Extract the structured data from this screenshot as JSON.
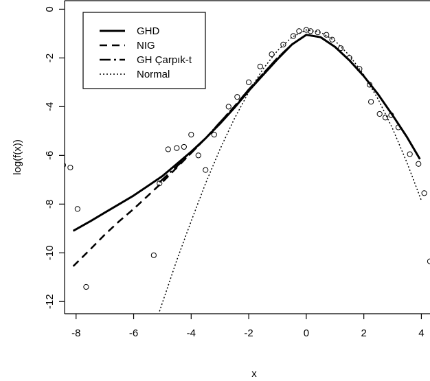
{
  "chart_data": {
    "type": "line",
    "title": "",
    "xlabel": "x",
    "ylabel": "log(f(x))",
    "xlim": [
      -8.4,
      4.3
    ],
    "ylim": [
      -12.5,
      0.35
    ],
    "xticks": [
      -8,
      -6,
      -4,
      -2,
      0,
      2,
      4
    ],
    "yticks": [
      0,
      -2,
      -4,
      -6,
      -8,
      -10,
      -12
    ],
    "grid": false,
    "legend_position": "top-left",
    "series": [
      {
        "name": "GHD",
        "style": "solid-thick",
        "points": [
          [
            -8.1,
            -9.1
          ],
          [
            -7.5,
            -8.7
          ],
          [
            -7.0,
            -8.35
          ],
          [
            -6.5,
            -8.0
          ],
          [
            -6.0,
            -7.65
          ],
          [
            -5.5,
            -7.25
          ],
          [
            -5.0,
            -6.85
          ],
          [
            -4.5,
            -6.35
          ],
          [
            -4.0,
            -5.85
          ],
          [
            -3.5,
            -5.3
          ],
          [
            -3.0,
            -4.7
          ],
          [
            -2.5,
            -4.05
          ],
          [
            -2.0,
            -3.35
          ],
          [
            -1.5,
            -2.7
          ],
          [
            -1.0,
            -2.05
          ],
          [
            -0.5,
            -1.45
          ],
          [
            0.0,
            -1.05
          ],
          [
            0.5,
            -1.15
          ],
          [
            1.0,
            -1.55
          ],
          [
            1.5,
            -2.1
          ],
          [
            2.0,
            -2.75
          ],
          [
            2.5,
            -3.5
          ],
          [
            3.0,
            -4.35
          ],
          [
            3.5,
            -5.25
          ],
          [
            3.95,
            -6.15
          ]
        ]
      },
      {
        "name": "NIG",
        "style": "dashed",
        "points": [
          [
            -8.1,
            -10.55
          ],
          [
            -7.5,
            -9.85
          ],
          [
            -7.0,
            -9.25
          ],
          [
            -6.5,
            -8.7
          ],
          [
            -6.0,
            -8.2
          ],
          [
            -5.5,
            -7.65
          ],
          [
            -5.0,
            -7.1
          ],
          [
            -4.5,
            -6.5
          ],
          [
            -4.0,
            -5.9
          ],
          [
            -3.5,
            -5.3
          ],
          [
            -3.0,
            -4.65
          ],
          [
            -2.5,
            -4.0
          ],
          [
            -2.0,
            -3.3
          ],
          [
            -1.5,
            -2.65
          ],
          [
            -1.0,
            -2.0
          ],
          [
            -0.5,
            -1.45
          ],
          [
            0.0,
            -1.05
          ],
          [
            0.5,
            -1.15
          ],
          [
            1.0,
            -1.55
          ],
          [
            1.5,
            -2.1
          ],
          [
            2.0,
            -2.75
          ],
          [
            2.5,
            -3.5
          ],
          [
            3.0,
            -4.35
          ],
          [
            3.5,
            -5.25
          ],
          [
            3.95,
            -6.15
          ]
        ]
      },
      {
        "name": "GH Çarpık-t",
        "style": "longdash",
        "points": [
          [
            -5.1,
            -7.1
          ],
          [
            -4.5,
            -6.45
          ],
          [
            -4.0,
            -5.9
          ],
          [
            -3.5,
            -5.3
          ],
          [
            -3.0,
            -4.65
          ],
          [
            -2.5,
            -4.0
          ],
          [
            -2.0,
            -3.3
          ],
          [
            -1.5,
            -2.65
          ],
          [
            -1.0,
            -2.0
          ],
          [
            -0.5,
            -1.45
          ],
          [
            0.0,
            -1.05
          ],
          [
            0.5,
            -1.15
          ],
          [
            1.0,
            -1.55
          ],
          [
            1.5,
            -2.1
          ],
          [
            2.0,
            -2.75
          ],
          [
            2.5,
            -3.5
          ],
          [
            3.0,
            -4.35
          ],
          [
            3.5,
            -5.25
          ],
          [
            3.95,
            -6.15
          ]
        ]
      },
      {
        "name": "Normal",
        "style": "dotted",
        "points": [
          [
            -5.1,
            -12.4
          ],
          [
            -4.5,
            -10.3
          ],
          [
            -4.0,
            -8.7
          ],
          [
            -3.5,
            -7.15
          ],
          [
            -3.0,
            -5.75
          ],
          [
            -2.5,
            -4.5
          ],
          [
            -2.0,
            -3.4
          ],
          [
            -1.5,
            -2.45
          ],
          [
            -1.0,
            -1.7
          ],
          [
            -0.5,
            -1.15
          ],
          [
            0.0,
            -0.85
          ],
          [
            0.5,
            -0.95
          ],
          [
            1.0,
            -1.3
          ],
          [
            1.5,
            -1.9
          ],
          [
            2.0,
            -2.7
          ],
          [
            2.5,
            -3.7
          ],
          [
            3.0,
            -4.9
          ],
          [
            3.5,
            -6.3
          ],
          [
            4.0,
            -7.85
          ]
        ]
      }
    ],
    "observations": [
      [
        -8.45,
        -6.4
      ],
      [
        -8.2,
        -6.5
      ],
      [
        -7.95,
        -8.2
      ],
      [
        -7.65,
        -11.4
      ],
      [
        -5.3,
        -10.1
      ],
      [
        -5.1,
        -7.15
      ],
      [
        -4.8,
        -5.75
      ],
      [
        -4.5,
        -5.7
      ],
      [
        -4.25,
        -5.65
      ],
      [
        -4.0,
        -5.15
      ],
      [
        -3.75,
        -6.0
      ],
      [
        -3.5,
        -6.6
      ],
      [
        -3.2,
        -5.15
      ],
      [
        -2.7,
        -4.0
      ],
      [
        -2.4,
        -3.6
      ],
      [
        -2.0,
        -3.0
      ],
      [
        -1.6,
        -2.35
      ],
      [
        -1.2,
        -1.85
      ],
      [
        -0.8,
        -1.45
      ],
      [
        -0.45,
        -1.1
      ],
      [
        -0.25,
        -0.9
      ],
      [
        0.0,
        -0.85
      ],
      [
        0.15,
        -0.9
      ],
      [
        0.4,
        -0.95
      ],
      [
        0.7,
        -1.05
      ],
      [
        0.9,
        -1.25
      ],
      [
        1.2,
        -1.6
      ],
      [
        1.5,
        -2.0
      ],
      [
        1.85,
        -2.45
      ],
      [
        2.2,
        -3.1
      ],
      [
        2.25,
        -3.8
      ],
      [
        2.55,
        -4.3
      ],
      [
        2.75,
        -4.45
      ],
      [
        2.95,
        -4.35
      ],
      [
        3.2,
        -4.85
      ],
      [
        3.6,
        -5.95
      ],
      [
        3.9,
        -6.35
      ],
      [
        4.1,
        -7.55
      ],
      [
        4.3,
        -10.35
      ]
    ]
  }
}
